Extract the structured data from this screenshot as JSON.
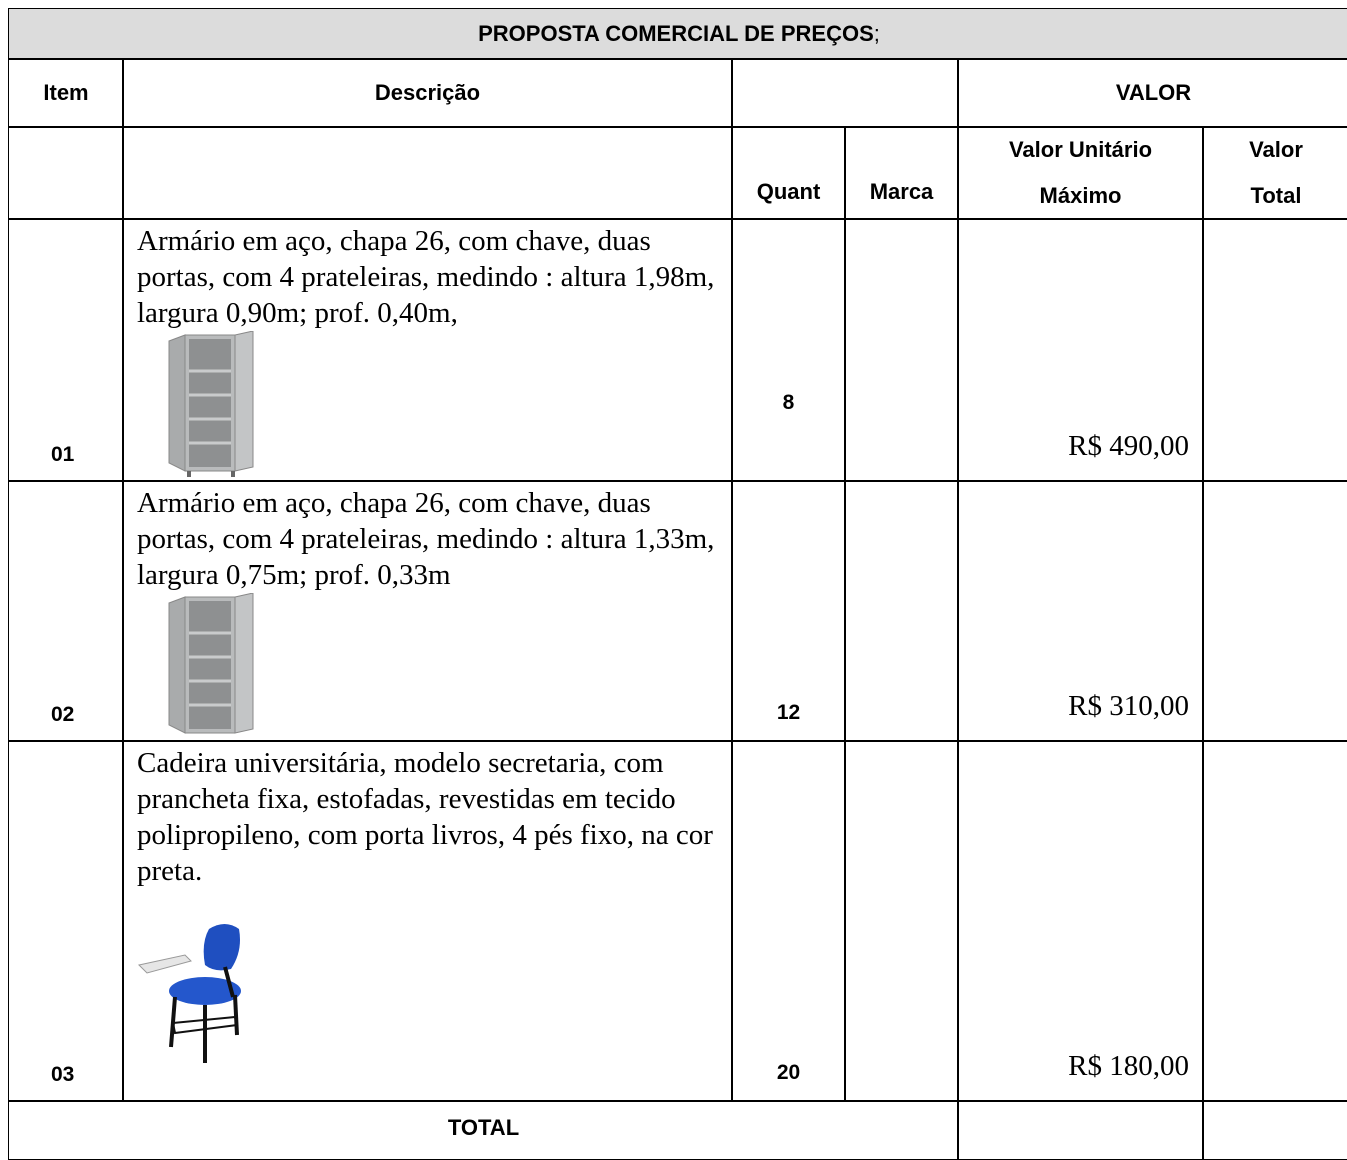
{
  "header": {
    "title": "PROPOSTA COMERCIAL DE PREÇOS",
    "title_suffix": ";"
  },
  "table": {
    "columns": {
      "item": "Item",
      "description": "Descrição",
      "value_group": "VALOR",
      "quantity": "Quant",
      "brand": "Marca",
      "unit_value": "Valor Unitário Máximo",
      "total_value": "Valor Total"
    },
    "rows": [
      {
        "item": "01",
        "description": "Armário em aço, chapa 26, com chave, duas portas, com 4 prateleiras, medindo : altura 1,98m, largura 0,90m; prof. 0,40m,",
        "quantity": "8",
        "unit_price": "R$ 490,00"
      },
      {
        "item": "02",
        "description": "Armário em aço, chapa 26, com chave, duas portas, com 4 prateleiras, medindo : altura 1,33m, largura 0,75m; prof. 0,33m",
        "quantity": "12",
        "unit_price": "R$ 310,00"
      },
      {
        "item": "03",
        "description": "Cadeira universitária, modelo secretaria, com prancheta fixa, estofadas, revestidas em tecido polipropileno, com porta livros, 4 pés fixo, na cor preta.",
        "quantity": "20",
        "unit_price": "R$ 180,00"
      }
    ],
    "total_label": "TOTAL"
  }
}
